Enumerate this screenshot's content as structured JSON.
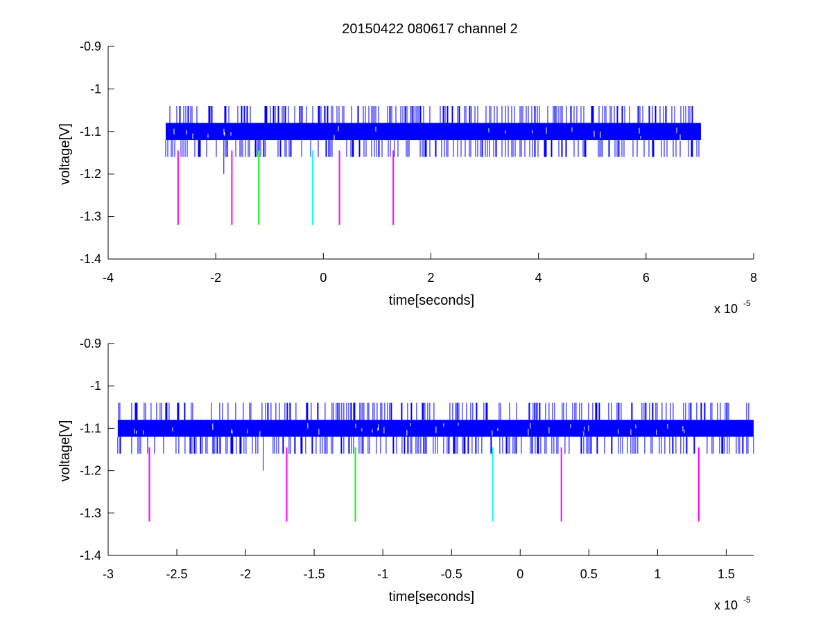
{
  "figure_title": "20150422 080617 channel 2",
  "chart_data": [
    {
      "type": "line",
      "title": "20150422 080617 channel 2",
      "xlabel": "time[seconds]",
      "ylabel": "voltage[V]",
      "x_exponent_label": "x 10",
      "x_exponent": "-5",
      "xlim": [
        -4,
        8
      ],
      "ylim": [
        -1.4,
        -0.9
      ],
      "x_ticks": [
        -4,
        -2,
        0,
        2,
        4,
        6,
        8
      ],
      "x_tick_labels": [
        "-4",
        "-2",
        "0",
        "2",
        "4",
        "6",
        "8"
      ],
      "y_ticks": [
        -1.4,
        -1.3,
        -1.2,
        -1.1,
        -1,
        -0.9
      ],
      "y_tick_labels": [
        "-1.4",
        "-1.3",
        "-1.2",
        "-1.1",
        "-1",
        "-0.9"
      ],
      "series": [
        {
          "color": "#0000ff",
          "x_range": [
            -2.93,
            7.02
          ],
          "band": [
            -1.12,
            -1.08
          ],
          "spike_up": -1.04,
          "spike_down": -1.16,
          "outlier_spikes": [
            {
              "x": -1.85,
              "y": -1.2
            }
          ]
        }
      ],
      "markers": [
        {
          "x": -2.7,
          "y_top": -1.145,
          "y_bottom": -1.32,
          "color": "#ff00ff"
        },
        {
          "x": -1.7,
          "y_top": -1.145,
          "y_bottom": -1.32,
          "color": "#ff00ff"
        },
        {
          "x": -1.2,
          "y_top": -1.145,
          "y_bottom": -1.32,
          "color": "#00ff00"
        },
        {
          "x": -0.2,
          "y_top": -1.145,
          "y_bottom": -1.32,
          "color": "#00ffff"
        },
        {
          "x": 0.3,
          "y_top": -1.145,
          "y_bottom": -1.32,
          "color": "#ff00ff"
        },
        {
          "x": 1.3,
          "y_top": -1.145,
          "y_bottom": -1.32,
          "color": "#ff00ff"
        }
      ]
    },
    {
      "type": "line",
      "title": "",
      "xlabel": "time[seconds]",
      "ylabel": "voltage[V]",
      "x_exponent_label": "x 10",
      "x_exponent": "-5",
      "xlim": [
        -3,
        1.7
      ],
      "ylim": [
        -1.4,
        -0.9
      ],
      "x_ticks": [
        -3,
        -2.5,
        -2,
        -1.5,
        -1,
        -0.5,
        0,
        0.5,
        1,
        1.5
      ],
      "x_tick_labels": [
        "-3",
        "-2.5",
        "-2",
        "-1.5",
        "-1",
        "-0.5",
        "0",
        "0.5",
        "1",
        "1.5"
      ],
      "y_ticks": [
        -1.4,
        -1.3,
        -1.2,
        -1.1,
        -1,
        -0.9
      ],
      "y_tick_labels": [
        "-1.4",
        "-1.3",
        "-1.2",
        "-1.1",
        "-1",
        "-0.9"
      ],
      "series": [
        {
          "color": "#0000ff",
          "x_range": [
            -2.93,
            1.7
          ],
          "band": [
            -1.12,
            -1.08
          ],
          "spike_up": -1.04,
          "spike_down": -1.16,
          "outlier_spikes": [
            {
              "x": -1.87,
              "y": -1.2
            }
          ]
        }
      ],
      "markers": [
        {
          "x": -2.7,
          "y_top": -1.145,
          "y_bottom": -1.32,
          "color": "#ff00ff"
        },
        {
          "x": -1.7,
          "y_top": -1.145,
          "y_bottom": -1.32,
          "color": "#ff00ff"
        },
        {
          "x": -1.2,
          "y_top": -1.145,
          "y_bottom": -1.32,
          "color": "#00ff00"
        },
        {
          "x": -0.2,
          "y_top": -1.145,
          "y_bottom": -1.32,
          "color": "#00ffff"
        },
        {
          "x": 0.3,
          "y_top": -1.145,
          "y_bottom": -1.32,
          "color": "#ff00ff"
        },
        {
          "x": 1.3,
          "y_top": -1.145,
          "y_bottom": -1.32,
          "color": "#ff00ff"
        }
      ]
    }
  ]
}
